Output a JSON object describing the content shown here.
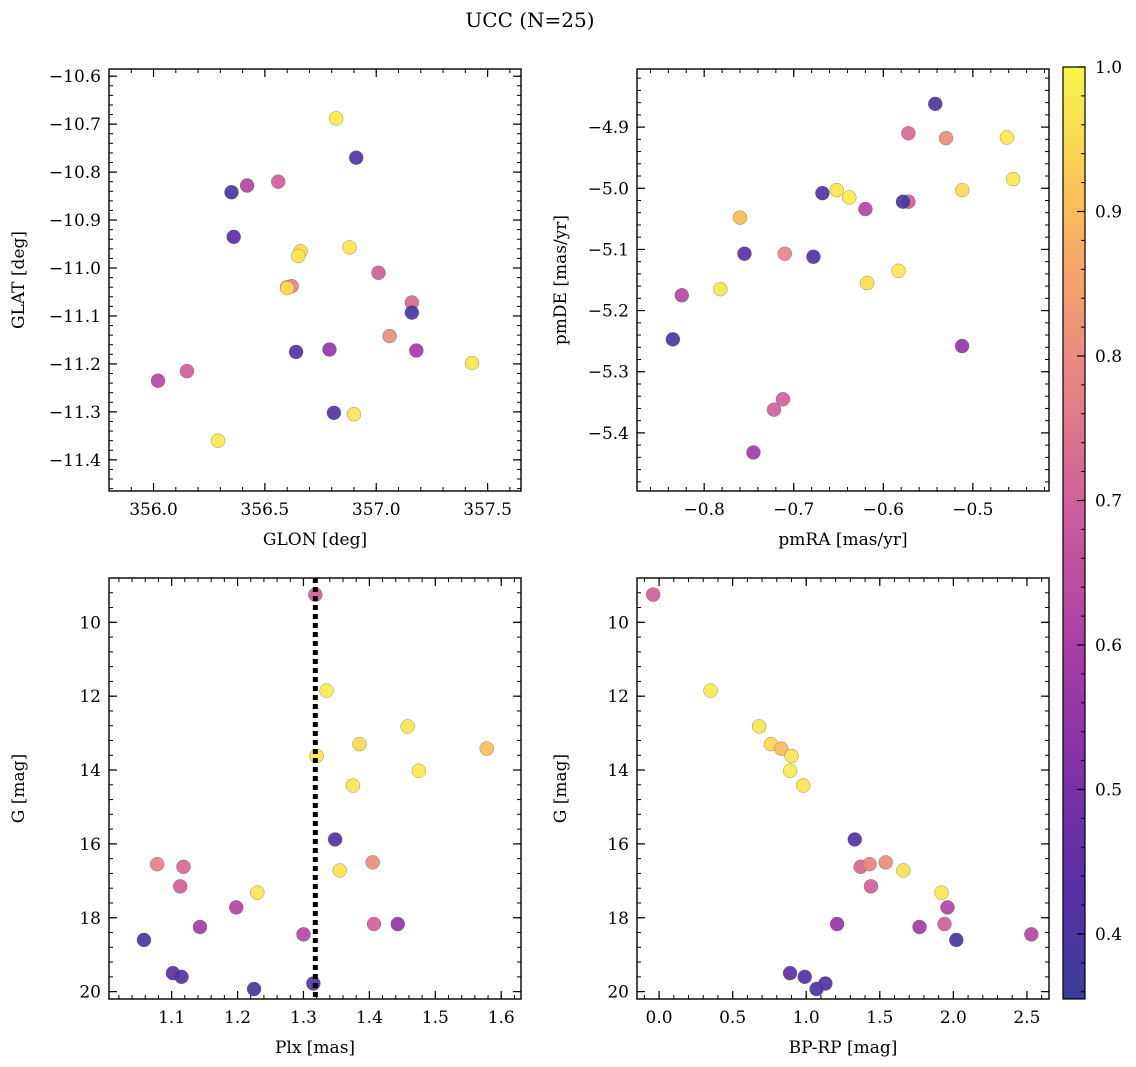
{
  "figure": {
    "title": "UCC (N=25)"
  },
  "chart_data": [
    {
      "type": "scatter",
      "xlabel": "GLON [deg]",
      "ylabel": "GLAT [deg]",
      "xlim": [
        355.8,
        357.65
      ],
      "ylim": [
        -11.465,
        -10.585
      ],
      "xticks": [
        356.0,
        356.5,
        357.0,
        357.5
      ],
      "xtick_labels": [
        "356.0",
        "356.5",
        "357.0",
        "357.5"
      ],
      "yticks": [
        -10.6,
        -10.7,
        -10.8,
        -10.9,
        -11.0,
        -11.1,
        -11.2,
        -11.3,
        -11.4
      ],
      "ytick_labels": [
        "−10.6",
        "−10.7",
        "−10.8",
        "−10.9",
        "−11.0",
        "−11.1",
        "−11.2",
        "−11.3",
        "−11.4"
      ],
      "y_inverted": false
    },
    {
      "type": "scatter",
      "xlabel": "pmRA [mas/yr]",
      "ylabel": "pmDE [mas/yr]",
      "xlim": [
        -0.875,
        -0.415
      ],
      "ylim": [
        -5.495,
        -4.805
      ],
      "xticks": [
        -0.8,
        -0.7,
        -0.6,
        -0.5
      ],
      "xtick_labels": [
        "−0.8",
        "−0.7",
        "−0.6",
        "−0.5"
      ],
      "yticks": [
        -4.9,
        -5.0,
        -5.1,
        -5.2,
        -5.3,
        -5.4
      ],
      "ytick_labels": [
        "−4.9",
        "−5.0",
        "−5.1",
        "−5.2",
        "−5.3",
        "−5.4"
      ],
      "y_inverted": false
    },
    {
      "type": "scatter",
      "xlabel": "Plx [mas]",
      "ylabel": "G [mag]",
      "xlim": [
        1.005,
        1.63
      ],
      "ylim": [
        20.2,
        8.8
      ],
      "xticks": [
        1.1,
        1.2,
        1.3,
        1.4,
        1.5,
        1.6
      ],
      "xtick_labels": [
        "1.1",
        "1.2",
        "1.3",
        "1.4",
        "1.5",
        "1.6"
      ],
      "yticks": [
        10,
        12,
        14,
        16,
        18,
        20
      ],
      "ytick_labels": [
        "10",
        "12",
        "14",
        "16",
        "18",
        "20"
      ],
      "y_inverted": true,
      "vline": 1.318
    },
    {
      "type": "scatter",
      "xlabel": "BP-RP [mag]",
      "ylabel": "G [mag]",
      "xlim": [
        -0.15,
        2.65
      ],
      "ylim": [
        20.2,
        8.8
      ],
      "xticks": [
        0.0,
        0.5,
        1.0,
        1.5,
        2.0,
        2.5
      ],
      "xtick_labels": [
        "0.0",
        "0.5",
        "1.0",
        "1.5",
        "2.0",
        "2.5"
      ],
      "yticks": [
        10,
        12,
        14,
        16,
        18,
        20
      ],
      "ytick_labels": [
        "10",
        "12",
        "14",
        "16",
        "18",
        "20"
      ],
      "y_inverted": true
    }
  ],
  "stars": [
    {
      "glon": 356.82,
      "glat": -10.688,
      "pmra": -0.462,
      "pmde": -4.917,
      "plx": 1.335,
      "g": 11.85,
      "bprp": 0.35,
      "p": 0.98
    },
    {
      "glon": 356.88,
      "glat": -10.957,
      "pmra": -0.455,
      "pmde": -4.985,
      "plx": 1.458,
      "g": 12.82,
      "bprp": 0.68,
      "p": 0.97
    },
    {
      "glon": 356.66,
      "glat": -10.965,
      "pmra": -0.512,
      "pmde": -5.003,
      "plx": 1.385,
      "g": 13.3,
      "bprp": 0.76,
      "p": 0.95
    },
    {
      "glon": 356.6,
      "glat": -11.04,
      "pmra": -0.76,
      "pmde": -5.048,
      "plx": 1.578,
      "g": 13.42,
      "bprp": 0.83,
      "p": 0.9
    },
    {
      "glon": 356.65,
      "glat": -10.975,
      "pmra": -0.652,
      "pmde": -5.003,
      "plx": 1.32,
      "g": 13.62,
      "bprp": 0.9,
      "p": 0.97
    },
    {
      "glon": 356.29,
      "glat": -11.36,
      "pmra": -0.638,
      "pmde": -5.015,
      "plx": 1.475,
      "g": 14.02,
      "bprp": 0.89,
      "p": 0.98
    },
    {
      "glon": 357.43,
      "glat": -11.198,
      "pmra": -0.782,
      "pmde": -5.165,
      "plx": 1.375,
      "g": 14.42,
      "bprp": 0.98,
      "p": 0.97
    },
    {
      "glon": 356.81,
      "glat": -11.302,
      "pmra": -0.668,
      "pmde": -5.008,
      "plx": 1.348,
      "g": 15.88,
      "bprp": 1.33,
      "p": 0.42
    },
    {
      "glon": 357.16,
      "glat": -11.072,
      "pmra": -0.572,
      "pmde": -4.91,
      "plx": 1.118,
      "g": 16.62,
      "bprp": 1.37,
      "p": 0.72
    },
    {
      "glon": 357.06,
      "glat": -11.142,
      "pmra": -0.53,
      "pmde": -4.918,
      "plx": 1.405,
      "g": 16.5,
      "bprp": 1.54,
      "p": 0.8
    },
    {
      "glon": 356.62,
      "glat": -11.038,
      "pmra": -0.71,
      "pmde": -5.107,
      "plx": 1.078,
      "g": 16.55,
      "bprp": 1.43,
      "p": 0.78
    },
    {
      "glon": 356.6,
      "glat": -11.042,
      "pmra": -0.618,
      "pmde": -5.155,
      "plx": 1.355,
      "g": 16.72,
      "bprp": 1.66,
      "p": 0.96
    },
    {
      "glon": 357.01,
      "glat": -11.01,
      "pmra": -0.722,
      "pmde": -5.362,
      "plx": 1.113,
      "g": 17.15,
      "bprp": 1.44,
      "p": 0.7
    },
    {
      "glon": 356.9,
      "glat": -11.305,
      "pmra": -0.583,
      "pmde": -5.135,
      "plx": 1.23,
      "g": 17.32,
      "bprp": 1.92,
      "p": 0.97
    },
    {
      "glon": 356.42,
      "glat": -10.828,
      "pmra": -0.62,
      "pmde": -5.034,
      "plx": 1.198,
      "g": 17.72,
      "bprp": 1.96,
      "p": 0.62
    },
    {
      "glon": 356.56,
      "glat": -10.82,
      "pmra": -0.712,
      "pmde": -5.345,
      "plx": 1.407,
      "g": 18.17,
      "bprp": 1.94,
      "p": 0.7
    },
    {
      "glon": 357.18,
      "glat": -11.172,
      "pmra": -0.745,
      "pmde": -5.432,
      "plx": 1.143,
      "g": 18.25,
      "bprp": 1.77,
      "p": 0.58
    },
    {
      "glon": 356.79,
      "glat": -11.17,
      "pmra": -0.512,
      "pmde": -5.258,
      "plx": 1.443,
      "g": 18.17,
      "bprp": 1.21,
      "p": 0.55
    },
    {
      "glon": 356.02,
      "glat": -11.235,
      "pmra": -0.825,
      "pmde": -5.175,
      "plx": 1.3,
      "g": 18.45,
      "bprp": 2.53,
      "p": 0.63
    },
    {
      "glon": 356.15,
      "glat": -11.215,
      "pmra": -0.572,
      "pmde": -5.022,
      "plx": 1.318,
      "g": 9.25,
      "bprp": -0.04,
      "p": 0.7
    },
    {
      "glon": 357.16,
      "glat": -11.093,
      "pmra": -0.578,
      "pmde": -5.022,
      "plx": 1.058,
      "g": 18.6,
      "bprp": 2.02,
      "p": 0.38
    },
    {
      "glon": 356.36,
      "glat": -10.935,
      "pmra": -0.755,
      "pmde": -5.107,
      "plx": 1.102,
      "g": 19.5,
      "bprp": 0.89,
      "p": 0.44
    },
    {
      "glon": 356.64,
      "glat": -11.175,
      "pmra": -0.678,
      "pmde": -5.112,
      "plx": 1.115,
      "g": 19.6,
      "bprp": 0.99,
      "p": 0.42
    },
    {
      "glon": 356.35,
      "glat": -10.842,
      "pmra": -0.835,
      "pmde": -5.247,
      "plx": 1.225,
      "g": 19.93,
      "bprp": 1.07,
      "p": 0.4
    },
    {
      "glon": 356.91,
      "glat": -10.77,
      "pmra": -0.542,
      "pmde": -4.862,
      "plx": 1.315,
      "g": 19.78,
      "bprp": 1.13,
      "p": 0.41
    }
  ],
  "colorbar": {
    "cmap": "plasma",
    "vmin": 0.355,
    "vmax": 1.0,
    "ticks": [
      0.4,
      0.5,
      0.6,
      0.7,
      0.8,
      0.9,
      1.0
    ],
    "tick_labels": [
      "0.4",
      "0.5",
      "0.6",
      "0.7",
      "0.8",
      "0.9",
      "1.0"
    ]
  },
  "style": {
    "vline_color": "#000000",
    "marker_edge": "#555555"
  }
}
